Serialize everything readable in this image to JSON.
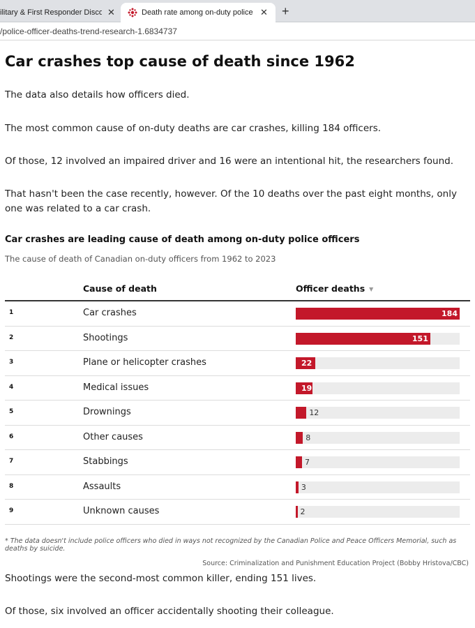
{
  "browser": {
    "tabs": [
      {
        "title": "ilitary & First Responder Discou"
      },
      {
        "title": "Death rate among on-duty police"
      }
    ],
    "close_glyph": "✕",
    "new_tab_glyph": "+",
    "url": "/police-officer-deaths-trend-research-1.6834737",
    "accent_color": "#c3182a"
  },
  "article": {
    "heading": "Car crashes top cause of death since 1962",
    "paragraphs_top": [
      "The data also details how officers died.",
      "The most common cause of on-duty deaths are car crashes, killing 184 officers.",
      "Of those, 12 involved an impaired driver and 16 were an intentional hit, the researchers found.",
      "That hasn't been the case recently, however. Of the 10 deaths over the past eight months, only one was related to a car crash."
    ],
    "paragraphs_bottom": [
      "Shootings were the second-most common killer, ending 151 lives.",
      "Of those, six involved an officer accidentally shooting their colleague."
    ]
  },
  "chart_data": {
    "type": "table",
    "title": "Car crashes are leading cause of death among on-duty police officers",
    "subtitle": "The cause of death of Canadian on-duty officers from 1962 to 2023",
    "columns": [
      "Cause of death",
      "Officer deaths"
    ],
    "sort_icon": "▼",
    "bar_color": "#c3182a",
    "max_value": 184,
    "rows": [
      {
        "rank": "1",
        "cause": "Car crashes",
        "value": 184
      },
      {
        "rank": "2",
        "cause": "Shootings",
        "value": 151
      },
      {
        "rank": "3",
        "cause": "Plane or helicopter crashes",
        "value": 22
      },
      {
        "rank": "4",
        "cause": "Medical issues",
        "value": 19
      },
      {
        "rank": "5",
        "cause": "Drownings",
        "value": 12
      },
      {
        "rank": "6",
        "cause": "Other causes",
        "value": 8
      },
      {
        "rank": "7",
        "cause": "Stabbings",
        "value": 7
      },
      {
        "rank": "8",
        "cause": "Assaults",
        "value": 3
      },
      {
        "rank": "9",
        "cause": "Unknown causes",
        "value": 2
      }
    ],
    "footnote": "* The data doesn't include police officers who died in ways not recognized by the Canadian Police and Peace Officers Memorial, such as deaths by suicide.",
    "source": "Source: Criminalization and Punishment Education Project (Bobby Hristova/CBC)"
  }
}
